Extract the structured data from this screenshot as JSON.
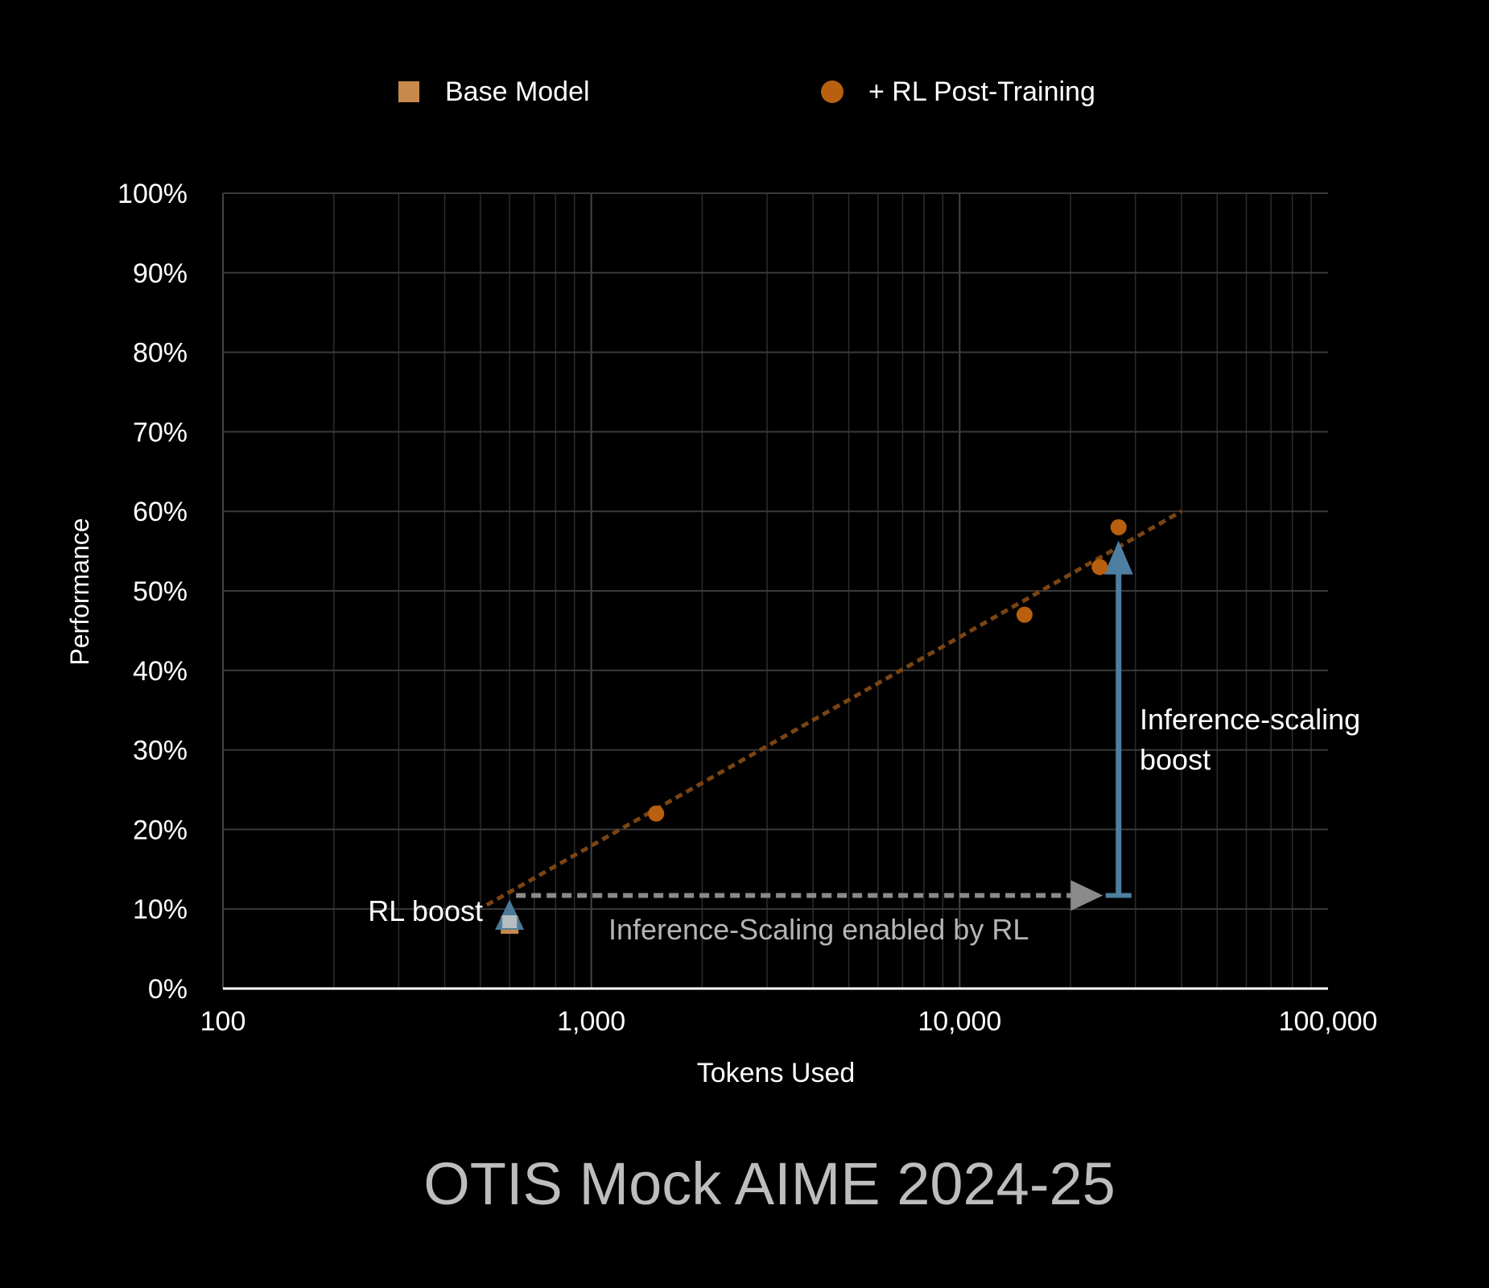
{
  "chart_data": {
    "type": "scatter",
    "title": "OTIS Mock AIME 2024-25",
    "xlabel": "Tokens Used",
    "ylabel": "Performance",
    "x_scale": "log",
    "xlim": [
      100,
      100000
    ],
    "ylim": [
      0,
      100
    ],
    "x_ticks": [
      {
        "value": 100,
        "label": "100"
      },
      {
        "value": 1000,
        "label": "1,000"
      },
      {
        "value": 10000,
        "label": "10,000"
      },
      {
        "value": 100000,
        "label": "100,000"
      }
    ],
    "y_ticks": [
      {
        "value": 0,
        "label": "0%"
      },
      {
        "value": 10,
        "label": "10%"
      },
      {
        "value": 20,
        "label": "20%"
      },
      {
        "value": 30,
        "label": "30%"
      },
      {
        "value": 40,
        "label": "40%"
      },
      {
        "value": 50,
        "label": "50%"
      },
      {
        "value": 60,
        "label": "60%"
      },
      {
        "value": 70,
        "label": "70%"
      },
      {
        "value": 80,
        "label": "80%"
      },
      {
        "value": 90,
        "label": "90%"
      },
      {
        "value": 100,
        "label": "100%"
      }
    ],
    "grid": true,
    "legend_position": "top",
    "series": [
      {
        "name": "Base Model",
        "marker": "square",
        "color": "#C88A4C",
        "points": [
          {
            "x": 600,
            "y": 8
          }
        ]
      },
      {
        "name": "+ RL Post-Training",
        "marker": "circle",
        "color": "#B8600F",
        "points": [
          {
            "x": 600,
            "y": 10
          },
          {
            "x": 1500,
            "y": 22
          },
          {
            "x": 15000,
            "y": 47
          },
          {
            "x": 24000,
            "y": 53
          },
          {
            "x": 27000,
            "y": 58
          }
        ]
      }
    ],
    "trendline": {
      "color": "#7A4413",
      "from": {
        "x": 520,
        "y": 10.5
      },
      "to": {
        "x": 40000,
        "y": 60
      }
    },
    "annotations": {
      "rl_boost": {
        "text": "RL boost",
        "x": 600,
        "y_from": 8,
        "y_to": 11
      },
      "inference_scaling": {
        "text": "Inference-Scaling enabled by RL",
        "x_from": 600,
        "x_to": 24000,
        "y": 11.7
      },
      "inference_boost": {
        "line1": "Inference-scaling",
        "line2": "boost",
        "x": 27000,
        "y_from": 11.7,
        "y_to": 55.5
      }
    },
    "colors": {
      "arrow_blue": "#4E7FA0",
      "arrow_gray": "#8A8A8A",
      "grid": "#3A3A3A",
      "axis": "#FFFFFF",
      "text": "#FFFFFF",
      "title_text": "#BDBDBD",
      "annotation_gray": "#B5B5B5"
    }
  }
}
